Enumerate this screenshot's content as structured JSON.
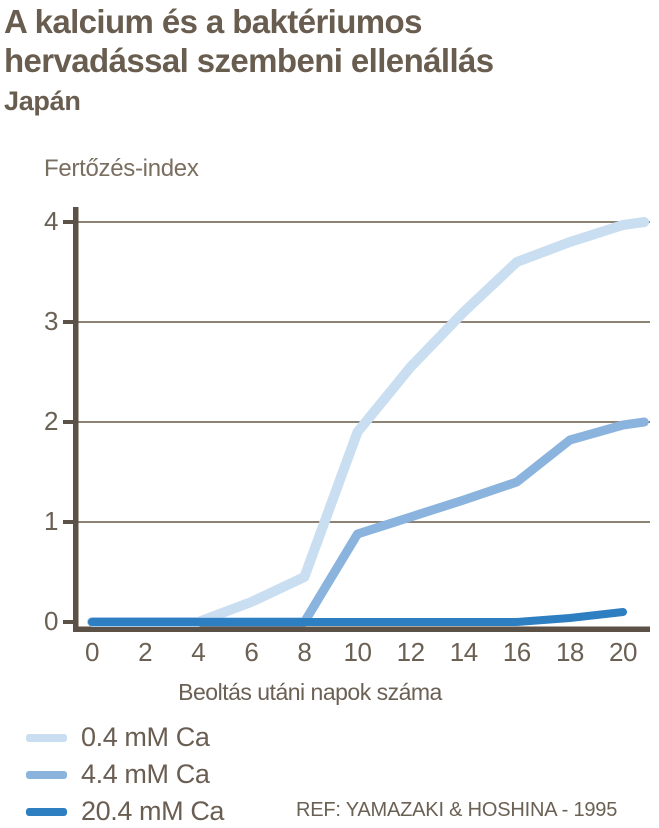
{
  "header": {
    "title_lines": [
      "A kalcium és a baktériumos",
      "hervadással szembeni ellenállás"
    ],
    "subtitle": "Japán"
  },
  "chart_data": {
    "type": "line",
    "title": "A kalcium és a baktériumos hervadással szembeni ellenállás",
    "subtitle": "Japán",
    "ylabel": "Fertőzés-index",
    "xlabel": "Beoltás utáni napok száma",
    "x_ticks": [
      0,
      2,
      4,
      6,
      8,
      10,
      12,
      14,
      16,
      18,
      20
    ],
    "x_tick_labels": [
      "0",
      "2",
      "4",
      "6",
      "8",
      "10",
      "12",
      "14",
      "16",
      "18",
      "20"
    ],
    "x_points": [
      0,
      2,
      4,
      6,
      8,
      10,
      12,
      14,
      16,
      18,
      20,
      20.8
    ],
    "yticks": [
      0,
      1,
      2,
      3,
      4
    ],
    "ylim": [
      0,
      4
    ],
    "xlim": [
      0,
      21
    ],
    "grid": "horizontal-only",
    "legend_position": "bottom-left",
    "series": [
      {
        "name": "0.4 mM Ca",
        "color": "#c9def1",
        "values": [
          0,
          0,
          0,
          0.2,
          0.45,
          1.9,
          2.55,
          3.1,
          3.6,
          3.8,
          3.97,
          4.0
        ]
      },
      {
        "name": "4.4 mM Ca",
        "color": "#8ab4de",
        "values": [
          0,
          0,
          0,
          0,
          0,
          0.88,
          1.05,
          1.22,
          1.4,
          1.82,
          1.97,
          2.0
        ]
      },
      {
        "name": "20.4 mM Ca",
        "color": "#2e7ec2",
        "values": [
          0,
          0,
          0,
          0,
          0,
          0,
          0,
          0,
          0,
          0.04,
          0.1,
          null
        ]
      }
    ],
    "reference": "REF: YAMAZAKI & HOSHINA - 1995"
  },
  "colors": {
    "title_text": "#695d50",
    "chart_text": "#6b6054",
    "axis": "#5c5146",
    "grid": "#8e8275",
    "background": "#ffffff"
  }
}
